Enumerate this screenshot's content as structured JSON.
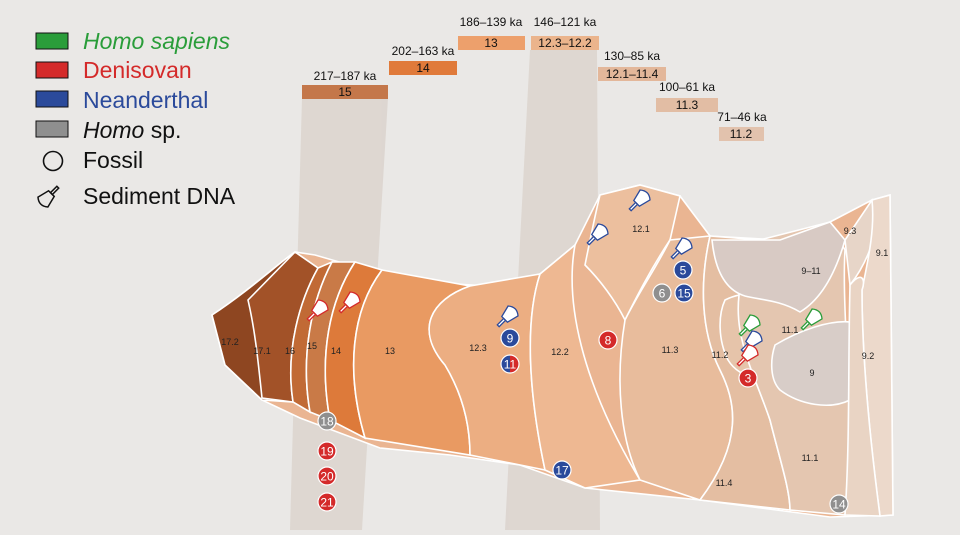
{
  "legend": [
    {
      "label": "Homo sapiens",
      "color": "#2a9d3a",
      "text_color": "#2a9d3a",
      "italic": true
    },
    {
      "label": "Denisovan",
      "color": "#d42a2a",
      "text_color": "#d42a2a",
      "italic": false
    },
    {
      "label": "Neanderthal",
      "color": "#2b4a9b",
      "text_color": "#2b4a9b",
      "italic": false
    },
    {
      "label_italic": "Homo",
      "label_rest": " sp.",
      "color": "#8f8f8f",
      "text_color": "#111111"
    },
    {
      "label": "Fossil",
      "icon": "fossil-circle-icon"
    },
    {
      "label": "Sediment DNA",
      "icon": "trowel-icon"
    }
  ],
  "date_boxes": [
    {
      "range": "217–187 ka",
      "layer": "15",
      "color": "#c4774a"
    },
    {
      "range": "202–163 ka",
      "layer": "14",
      "color": "#e07a3a"
    },
    {
      "range": "186–139 ka",
      "layer": "13",
      "color": "#eda06c"
    },
    {
      "range": "146–121 ka",
      "layer": "12.3–12.2",
      "color": "#ebb48c"
    },
    {
      "range": "130–85 ka",
      "layer": "12.1–11.4",
      "color": "#e3b79a"
    },
    {
      "range": "100–61 ka",
      "layer": "11.3",
      "color": "#e2bda4"
    },
    {
      "range": "71–46 ka",
      "layer": "11.2",
      "color": "#e2c2ad"
    }
  ],
  "layers": [
    "17.2",
    "17.1",
    "16",
    "15",
    "14",
    "13",
    "12.3",
    "12.2",
    "12.1",
    "11.3",
    "11.2",
    "11.1",
    "11.4",
    "11.1",
    "9–11",
    "9",
    "9.3",
    "9.1",
    "9.2"
  ],
  "fossils": [
    {
      "id": "5",
      "group": "Neanderthal"
    },
    {
      "id": "6",
      "group": "Homo sp."
    },
    {
      "id": "15",
      "group": "Neanderthal"
    },
    {
      "id": "9",
      "group": "Neanderthal"
    },
    {
      "id": "11",
      "group": "Denisovan-Neanderthal"
    },
    {
      "id": "8",
      "group": "Denisovan"
    },
    {
      "id": "3",
      "group": "Denisovan"
    },
    {
      "id": "17",
      "group": "Neanderthal"
    },
    {
      "id": "18",
      "group": "Homo sp."
    },
    {
      "id": "19",
      "group": "Denisovan"
    },
    {
      "id": "20",
      "group": "Denisovan"
    },
    {
      "id": "21",
      "group": "Denisovan"
    },
    {
      "id": "14",
      "group": "Homo sp."
    }
  ]
}
